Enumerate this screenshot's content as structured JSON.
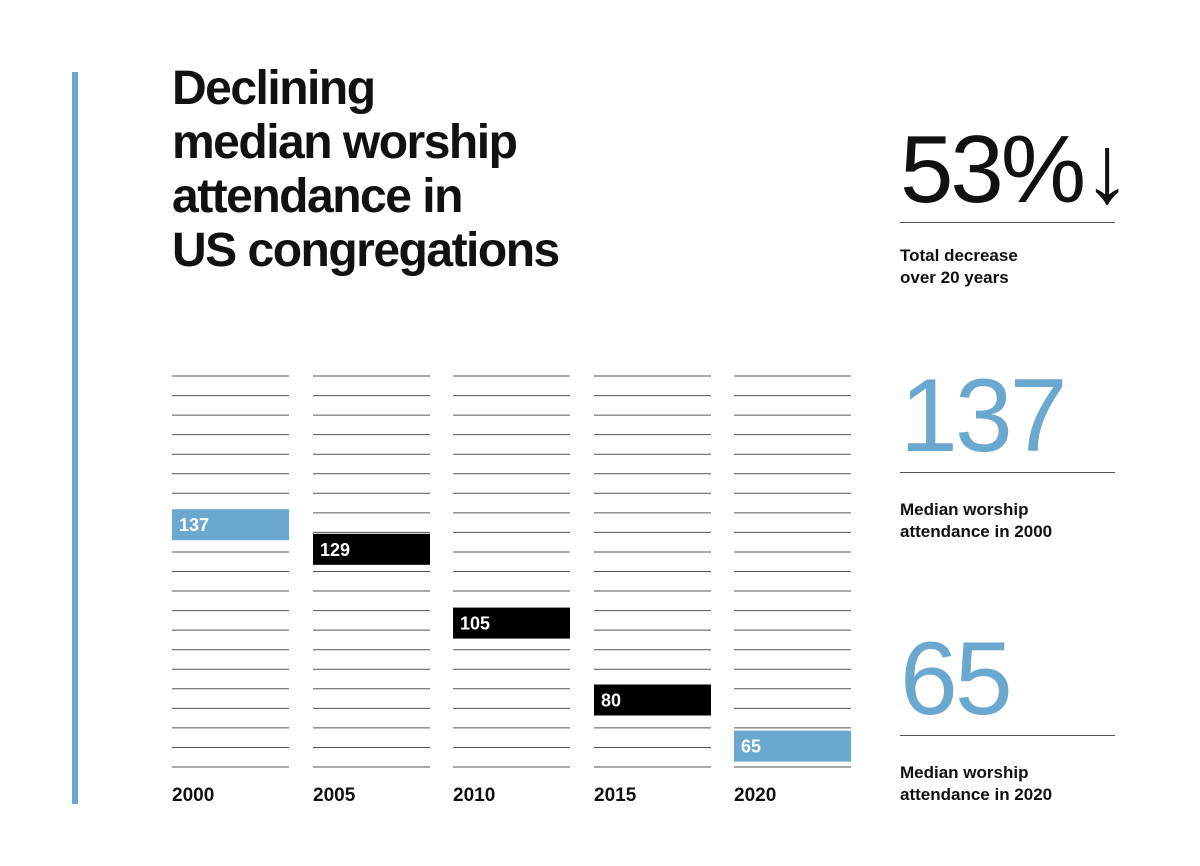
{
  "title_lines": [
    "Declining",
    "median worship",
    "attendance in",
    "US congregations"
  ],
  "colors": {
    "accent": "#6aa8cf",
    "highlight_bar": "#6aa8cf",
    "bar": "#000000",
    "line": "#555555"
  },
  "stats": [
    {
      "value": "53%↓",
      "caption_lines": [
        "Total decrease",
        "over 20 years"
      ],
      "color": "#111111"
    },
    {
      "value": "137",
      "caption_lines": [
        "Median worship",
        "attendance in 2000"
      ],
      "color": "#6aa8cf"
    },
    {
      "value": "65",
      "caption_lines": [
        "Median worship",
        "attendance in 2020"
      ],
      "color": "#6aa8cf"
    }
  ],
  "chart_data": {
    "type": "bar",
    "categories": [
      "2000",
      "2005",
      "2010",
      "2015",
      "2020"
    ],
    "values": [
      137,
      129,
      105,
      80,
      65
    ],
    "highlighted": [
      "2000",
      "2020"
    ],
    "ylim": [
      0,
      230
    ],
    "grid": true,
    "title": "Declining median worship attendance in US congregations"
  }
}
